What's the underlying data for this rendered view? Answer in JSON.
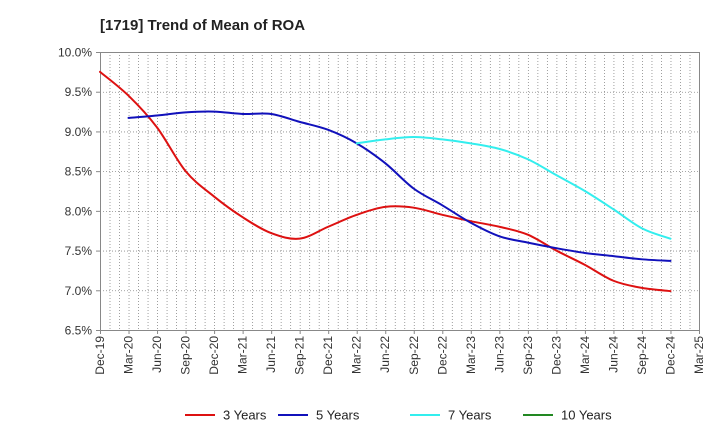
{
  "chart_data": {
    "type": "line",
    "title": "[1719]  Trend of Mean of ROA",
    "xlabel": "",
    "ylabel": "",
    "ylim": [
      6.5,
      10.0
    ],
    "y_ticks": [
      "6.5%",
      "7.0%",
      "7.5%",
      "8.0%",
      "8.5%",
      "9.0%",
      "9.5%",
      "10.0%"
    ],
    "y_tick_values": [
      6.5,
      7.0,
      7.5,
      8.0,
      8.5,
      9.0,
      9.5,
      10.0
    ],
    "x_tick_labels": [
      "Dec-19",
      "Mar-20",
      "Jun-20",
      "Sep-20",
      "Dec-20",
      "Mar-21",
      "Jun-21",
      "Sep-21",
      "Dec-21",
      "Mar-22",
      "Jun-22",
      "Sep-22",
      "Dec-22",
      "Mar-23",
      "Jun-23",
      "Sep-23",
      "Dec-23",
      "Mar-24",
      "Jun-24",
      "Sep-24",
      "Dec-24",
      "Mar-25"
    ],
    "x_months": 63,
    "grid": true,
    "legend_position": "bottom",
    "series": [
      {
        "name": "3 Years",
        "color": "#dd1111",
        "points": [
          [
            0,
            9.75
          ],
          [
            3,
            9.45
          ],
          [
            6,
            9.05
          ],
          [
            9,
            8.5
          ],
          [
            12,
            8.18
          ],
          [
            15,
            7.92
          ],
          [
            18,
            7.72
          ],
          [
            21,
            7.65
          ],
          [
            24,
            7.8
          ],
          [
            27,
            7.95
          ],
          [
            30,
            8.05
          ],
          [
            33,
            8.04
          ],
          [
            36,
            7.95
          ],
          [
            39,
            7.87
          ],
          [
            42,
            7.8
          ],
          [
            45,
            7.7
          ],
          [
            48,
            7.5
          ],
          [
            51,
            7.32
          ],
          [
            54,
            7.12
          ],
          [
            57,
            7.03
          ],
          [
            60,
            6.99
          ]
        ]
      },
      {
        "name": "5 Years",
        "color": "#1111bb",
        "points": [
          [
            3,
            9.17
          ],
          [
            6,
            9.2
          ],
          [
            9,
            9.24
          ],
          [
            12,
            9.25
          ],
          [
            15,
            9.22
          ],
          [
            18,
            9.22
          ],
          [
            21,
            9.12
          ],
          [
            24,
            9.02
          ],
          [
            27,
            8.85
          ],
          [
            30,
            8.6
          ],
          [
            33,
            8.28
          ],
          [
            36,
            8.07
          ],
          [
            39,
            7.85
          ],
          [
            42,
            7.68
          ],
          [
            45,
            7.6
          ],
          [
            48,
            7.53
          ],
          [
            51,
            7.47
          ],
          [
            54,
            7.43
          ],
          [
            57,
            7.39
          ],
          [
            60,
            7.37
          ]
        ]
      },
      {
        "name": "7 Years",
        "color": "#33eeee",
        "points": [
          [
            27,
            8.85
          ],
          [
            30,
            8.9
          ],
          [
            33,
            8.93
          ],
          [
            36,
            8.9
          ],
          [
            39,
            8.85
          ],
          [
            42,
            8.78
          ],
          [
            45,
            8.65
          ],
          [
            48,
            8.45
          ],
          [
            51,
            8.25
          ],
          [
            54,
            8.02
          ],
          [
            57,
            7.78
          ],
          [
            60,
            7.65
          ]
        ]
      },
      {
        "name": "10 Years",
        "color": "#228822",
        "points": []
      }
    ]
  }
}
